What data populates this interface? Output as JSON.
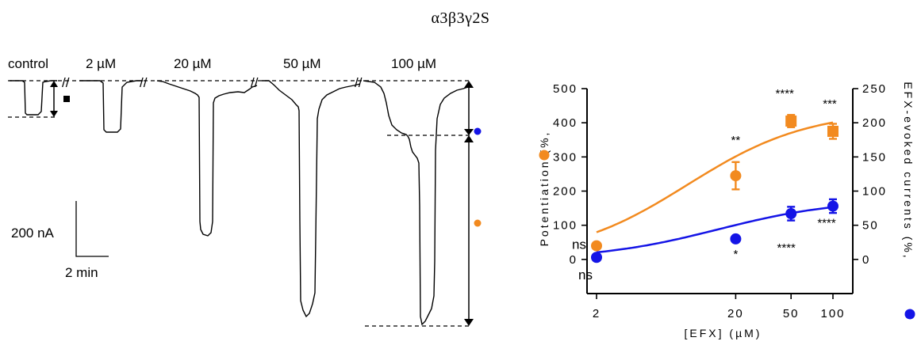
{
  "title": "α3β3γ2S",
  "traces": {
    "concentrations": [
      "control",
      "2 µM",
      "20 µM",
      "50 µM",
      "100 µM"
    ],
    "scale_bar": {
      "current": "200 nA",
      "time": "2 min"
    },
    "break_mark": "//"
  },
  "chart_data": {
    "type": "scatter",
    "x": [
      2,
      20,
      50,
      100
    ],
    "xlabel": "[EFX] (µM)",
    "x_ticks": [
      "2",
      "20",
      "50",
      "100"
    ],
    "ylabel_left": "Potentiation  (%,",
    "ylabel_right": "EFX-evoked currents (%,",
    "ylim_left": [
      -100,
      500
    ],
    "ylim_right": [
      -50,
      250
    ],
    "left_ticks": [
      "0",
      "100",
      "200",
      "300",
      "400",
      "500"
    ],
    "right_ticks": [
      "0",
      "50",
      "100",
      "150",
      "200",
      "250"
    ],
    "series": [
      {
        "color": "#F28A1F",
        "axis": "left",
        "values": [
          40,
          245,
          405,
          375
        ],
        "errors": [
          8,
          40,
          18,
          22
        ],
        "labels": [
          "ns",
          "**",
          "****",
          "***"
        ]
      },
      {
        "color": "#1414E6",
        "axis": "right",
        "values": [
          3,
          30,
          67,
          78
        ],
        "errors": [
          2,
          3,
          10,
          10
        ],
        "labels": [
          "ns",
          "*",
          "****",
          "****"
        ]
      }
    ]
  }
}
